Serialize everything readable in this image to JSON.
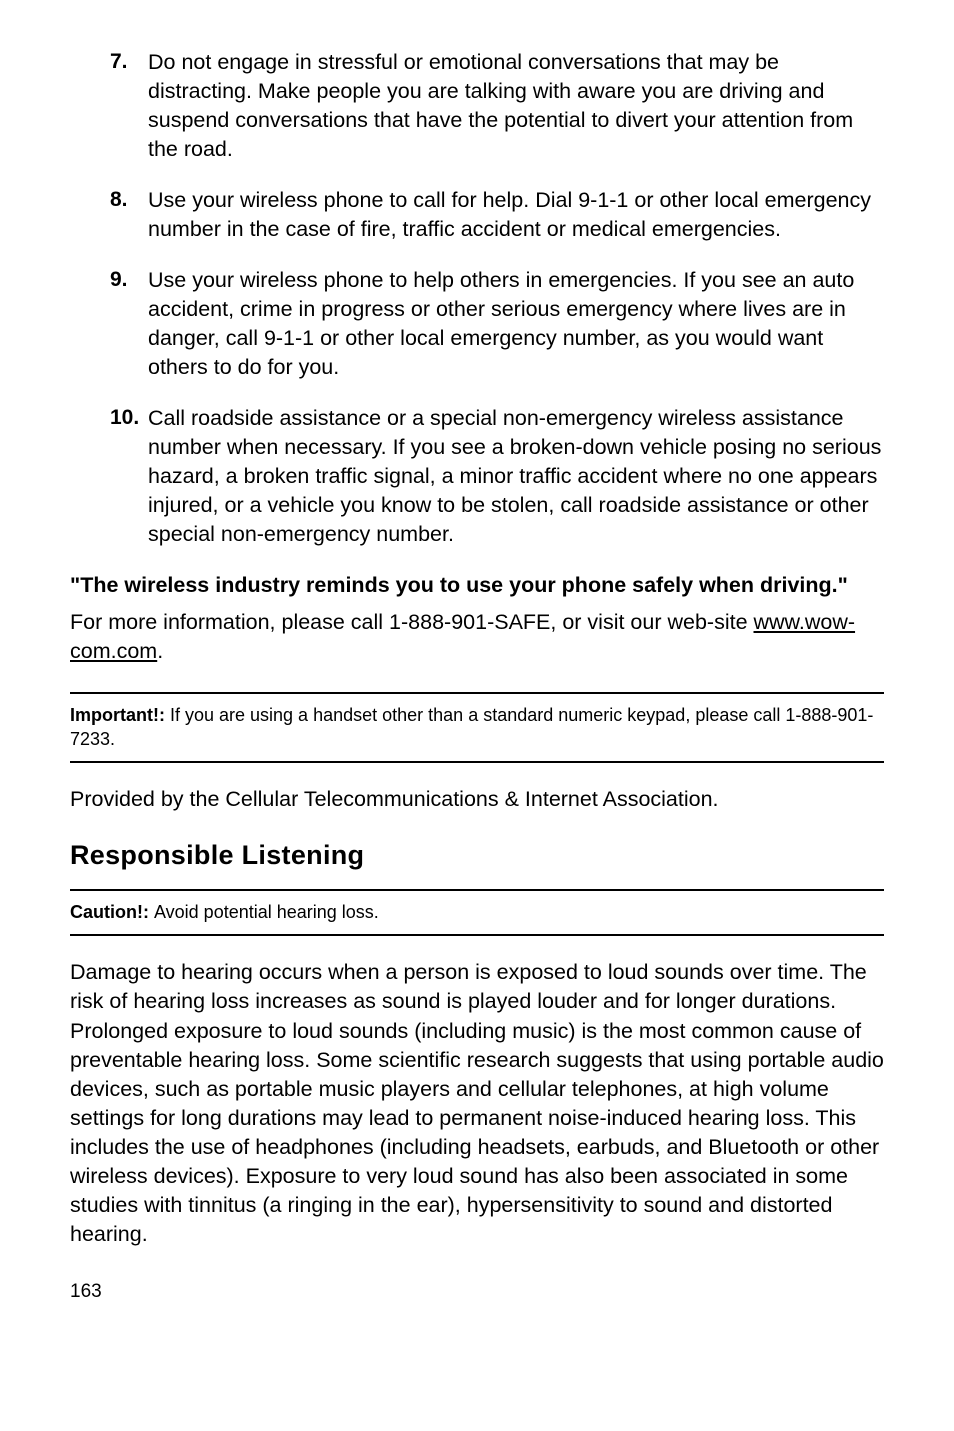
{
  "list": [
    {
      "num": "7.",
      "text": "Do not engage in stressful or emotional conversations that may be distracting. Make people you are talking with aware you are driving and suspend conversations that have the potential to divert your attention from the road."
    },
    {
      "num": "8.",
      "text": "Use your wireless phone to call for help. Dial 9-1-1 or other local emergency number in the case of fire, traffic accident or medical emergencies."
    },
    {
      "num": "9.",
      "text": "Use your wireless phone to help others in emergencies. If you see an auto accident, crime in progress or other serious emergency where lives are in danger, call 9-1-1 or other local emergency number, as you would want others to do for you."
    },
    {
      "num": "10.",
      "text": "Call roadside assistance or a special non-emergency wireless assistance number when necessary. If you see a broken-down vehicle posing no serious hazard, a broken traffic signal, a minor traffic accident where no one appears injured, or a vehicle you know to be stolen, call roadside assistance or other special non-emergency number."
    }
  ],
  "quote": "\"The wireless industry reminds you to use your phone safely when driving.\"",
  "more_info_prefix": "For more information, please call 1-888-901-SAFE, or visit our web-site ",
  "more_info_link": "www.wow-com.com",
  "more_info_suffix": ".",
  "important_label": "Important!: ",
  "important_text": "If you are using a handset other than a standard numeric keypad, please call 1-888-901-7233.",
  "provided_by": "Provided by the Cellular Telecommunications & Internet Association.",
  "section_title": "Responsible Listening",
  "caution_label": "Caution!: ",
  "caution_text": "Avoid potential hearing loss.",
  "damage_para": "Damage to hearing occurs when a person is exposed to loud sounds over time. The risk of hearing loss increases as sound is played louder and for longer durations. Prolonged exposure to loud sounds (including music) is the most common cause of preventable hearing loss. Some scientific research suggests that using portable audio devices, such as portable music players and cellular telephones, at high volume settings for long durations may lead to permanent noise-induced hearing loss. This includes the use of headphones (including headsets, earbuds, and Bluetooth or other wireless devices). Exposure to very loud sound has also been associated in some studies with tinnitus (a ringing in the ear), hypersensitivity to sound and distorted hearing.",
  "page_number": "163"
}
